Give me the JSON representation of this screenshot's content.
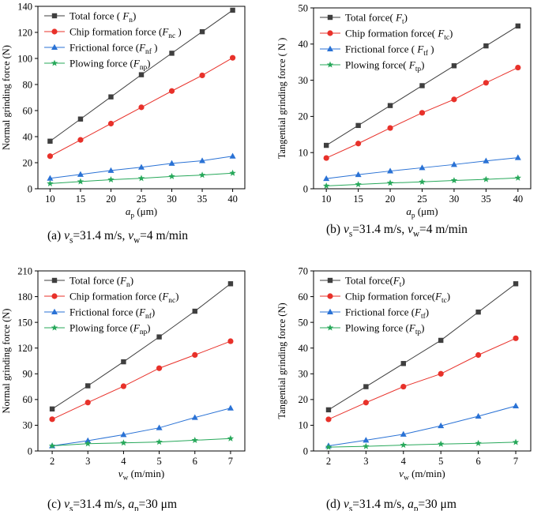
{
  "colors": {
    "total": "#3f3f3f",
    "chip": "#e8312a",
    "friction": "#2a72d5",
    "plow": "#27a85a"
  },
  "chart_data": [
    {
      "type": "line",
      "id": "a",
      "caption": "(a) vs=31.4 m/s, vw=4 m/min",
      "caption_parts": [
        [
          "(a) ",
          ""
        ],
        [
          "v",
          "i"
        ],
        [
          "s",
          "sub"
        ],
        [
          "=31.4 m/s, ",
          ""
        ],
        [
          "v",
          "i"
        ],
        [
          "w",
          "sub"
        ],
        [
          "=4 m/min",
          ""
        ]
      ],
      "xlabel_parts": [
        [
          "a",
          "i"
        ],
        [
          "p",
          "sub"
        ],
        [
          " (μm)",
          ""
        ]
      ],
      "ylabel_parts": [
        [
          "Normal grinding force  (N)",
          ""
        ]
      ],
      "x": [
        10,
        15,
        20,
        25,
        30,
        35,
        40
      ],
      "xlim": [
        8,
        42
      ],
      "ylim": [
        0,
        140
      ],
      "yticks": [
        0,
        20,
        40,
        60,
        80,
        100,
        120,
        140
      ],
      "legend_position": "top-left",
      "series": [
        {
          "key": "total",
          "marker": "square",
          "name_parts": [
            [
              "Total force ( ",
              ""
            ],
            [
              "F",
              "i"
            ],
            [
              "n",
              "sub"
            ],
            [
              ")",
              ""
            ]
          ],
          "values": [
            36.5,
            53.5,
            70.5,
            87.5,
            104,
            120.5,
            137
          ]
        },
        {
          "key": "chip",
          "marker": "circle",
          "name_parts": [
            [
              "Chip formation force (",
              ""
            ],
            [
              "F",
              "i"
            ],
            [
              "nc",
              "sub"
            ],
            [
              " )",
              ""
            ]
          ],
          "values": [
            25,
            37.5,
            50,
            62.5,
            75,
            87,
            100.5
          ]
        },
        {
          "key": "friction",
          "marker": "triangle",
          "name_parts": [
            [
              "Frictional force (",
              ""
            ],
            [
              "F",
              "i"
            ],
            [
              "nf",
              "sub"
            ],
            [
              " )",
              ""
            ]
          ],
          "values": [
            8,
            11,
            14,
            16.5,
            19.5,
            21.5,
            25
          ]
        },
        {
          "key": "plow",
          "marker": "star",
          "name_parts": [
            [
              "Plowing force (",
              ""
            ],
            [
              "F",
              "i"
            ],
            [
              "np",
              "sub"
            ],
            [
              ")",
              ""
            ]
          ],
          "values": [
            4,
            5.5,
            7,
            8,
            9.5,
            10.5,
            12
          ]
        }
      ]
    },
    {
      "type": "line",
      "id": "b",
      "caption": "(b) vs=31.4 m/s, vw=4 m/min",
      "caption_parts": [
        [
          "(b) ",
          ""
        ],
        [
          "v",
          "i"
        ],
        [
          "s",
          "sub"
        ],
        [
          "=31.4 m/s, ",
          ""
        ],
        [
          "v",
          "i"
        ],
        [
          "w",
          "sub"
        ],
        [
          "=4 m/min",
          ""
        ]
      ],
      "xlabel_parts": [
        [
          "a",
          "i"
        ],
        [
          "p",
          "sub"
        ],
        [
          " (μm)",
          ""
        ]
      ],
      "ylabel_parts": [
        [
          "Tangential grinding force  ( N )",
          ""
        ]
      ],
      "x": [
        10,
        15,
        20,
        25,
        30,
        35,
        40
      ],
      "xlim": [
        8,
        42
      ],
      "ylim": [
        0,
        50
      ],
      "yticks": [
        0,
        10,
        20,
        30,
        40,
        50
      ],
      "legend_position": "top-left",
      "series": [
        {
          "key": "total",
          "marker": "square",
          "name_parts": [
            [
              "Total force( ",
              ""
            ],
            [
              "F",
              "i"
            ],
            [
              "t",
              "sub"
            ],
            [
              ")",
              ""
            ]
          ],
          "values": [
            12,
            17.5,
            23,
            28.5,
            34,
            39.5,
            45
          ]
        },
        {
          "key": "chip",
          "marker": "circle",
          "name_parts": [
            [
              "Chip formation force( ",
              ""
            ],
            [
              "F",
              "i"
            ],
            [
              "tc",
              "sub"
            ],
            [
              ")",
              ""
            ]
          ],
          "values": [
            8.5,
            12.5,
            16.8,
            21,
            24.7,
            29.3,
            33.5
          ]
        },
        {
          "key": "friction",
          "marker": "triangle",
          "name_parts": [
            [
              "Frictional force ( ",
              ""
            ],
            [
              "F",
              "i"
            ],
            [
              "tf",
              "sub"
            ],
            [
              " )",
              ""
            ]
          ],
          "values": [
            2.8,
            3.9,
            4.9,
            5.8,
            6.7,
            7.7,
            8.6
          ]
        },
        {
          "key": "plow",
          "marker": "star",
          "name_parts": [
            [
              "Plowing force( ",
              ""
            ],
            [
              "F",
              "i"
            ],
            [
              "tp",
              "sub"
            ],
            [
              ")",
              ""
            ]
          ],
          "values": [
            0.8,
            1.2,
            1.6,
            1.9,
            2.3,
            2.6,
            3
          ]
        }
      ]
    },
    {
      "type": "line",
      "id": "c",
      "caption": "(c) vs=31.4 m/s, ap=30 μm",
      "caption_parts": [
        [
          "(c) ",
          ""
        ],
        [
          "v",
          "i"
        ],
        [
          "s",
          "sub"
        ],
        [
          "=31.4 m/s, ",
          ""
        ],
        [
          "a",
          "i"
        ],
        [
          "p",
          "sub"
        ],
        [
          "=30 μm",
          ""
        ]
      ],
      "xlabel_parts": [
        [
          "v",
          "i"
        ],
        [
          "w",
          "sub"
        ],
        [
          " (m/min)",
          ""
        ]
      ],
      "ylabel_parts": [
        [
          "Normal grinding force (N)",
          ""
        ]
      ],
      "x": [
        2,
        3,
        4,
        5,
        6,
        7
      ],
      "xlim": [
        1.6,
        7.4
      ],
      "ylim": [
        0,
        210
      ],
      "yticks": [
        0,
        30,
        60,
        90,
        120,
        150,
        180,
        210
      ],
      "legend_position": "top-left",
      "series": [
        {
          "key": "total",
          "marker": "square",
          "name_parts": [
            [
              "Total force (",
              ""
            ],
            [
              "F",
              "i"
            ],
            [
              "n",
              "sub"
            ],
            [
              ")",
              ""
            ]
          ],
          "values": [
            49,
            76,
            104,
            133,
            163,
            195
          ]
        },
        {
          "key": "chip",
          "marker": "circle",
          "name_parts": [
            [
              "Chip formation force (",
              ""
            ],
            [
              "F",
              "i"
            ],
            [
              "nc",
              "sub"
            ],
            [
              ")",
              ""
            ]
          ],
          "values": [
            37,
            56.5,
            75.5,
            96.5,
            112,
            128
          ]
        },
        {
          "key": "friction",
          "marker": "triangle",
          "name_parts": [
            [
              "Frictional force (",
              ""
            ],
            [
              "F",
              "i"
            ],
            [
              "nf",
              "sub"
            ],
            [
              ")",
              ""
            ]
          ],
          "values": [
            6,
            12,
            19,
            27,
            39,
            50
          ]
        },
        {
          "key": "plow",
          "marker": "star",
          "name_parts": [
            [
              "Plowing force (",
              ""
            ],
            [
              "F",
              "i"
            ],
            [
              "np",
              "sub"
            ],
            [
              ")",
              ""
            ]
          ],
          "values": [
            6,
            8.5,
            9.5,
            10.5,
            12.5,
            14.5
          ]
        }
      ]
    },
    {
      "type": "line",
      "id": "d",
      "caption": "(d) vs=31.4 m/s, ap=30 μm",
      "caption_parts": [
        [
          "(d) ",
          ""
        ],
        [
          "v",
          "i"
        ],
        [
          "s",
          "sub"
        ],
        [
          "=31.4 m/s, ",
          ""
        ],
        [
          "a",
          "i"
        ],
        [
          "p",
          "sub"
        ],
        [
          "=30 μm",
          ""
        ]
      ],
      "xlabel_parts": [
        [
          "v",
          "i"
        ],
        [
          "w",
          "sub"
        ],
        [
          " (m/min)",
          ""
        ]
      ],
      "ylabel_parts": [
        [
          "Tangential grinding force (N)",
          ""
        ]
      ],
      "x": [
        2,
        3,
        4,
        5,
        6,
        7
      ],
      "xlim": [
        1.6,
        7.4
      ],
      "ylim": [
        0,
        70
      ],
      "yticks": [
        0,
        10,
        20,
        30,
        40,
        50,
        60,
        70
      ],
      "legend_position": "top-left",
      "series": [
        {
          "key": "total",
          "marker": "square",
          "name_parts": [
            [
              "Total force(",
              ""
            ],
            [
              "F",
              "i"
            ],
            [
              "t",
              "sub"
            ],
            [
              ")",
              ""
            ]
          ],
          "values": [
            16,
            25,
            34,
            43,
            54,
            65
          ]
        },
        {
          "key": "chip",
          "marker": "circle",
          "name_parts": [
            [
              "Chip formation force(",
              ""
            ],
            [
              "F",
              "i"
            ],
            [
              "tc",
              "sub"
            ],
            [
              ")",
              ""
            ]
          ],
          "values": [
            12.3,
            18.8,
            25,
            30,
            37.3,
            43.8
          ]
        },
        {
          "key": "friction",
          "marker": "triangle",
          "name_parts": [
            [
              "Frictional force (",
              ""
            ],
            [
              "F",
              "i"
            ],
            [
              "tf",
              "sub"
            ],
            [
              ")",
              ""
            ]
          ],
          "values": [
            2,
            4.2,
            6.5,
            9.8,
            13.5,
            17.5
          ]
        },
        {
          "key": "plow",
          "marker": "star",
          "name_parts": [
            [
              "Plowing force (",
              ""
            ],
            [
              "F",
              "i"
            ],
            [
              "tp",
              "sub"
            ],
            [
              ")",
              ""
            ]
          ],
          "values": [
            1.5,
            1.8,
            2.3,
            2.7,
            3,
            3.4
          ]
        }
      ]
    }
  ]
}
